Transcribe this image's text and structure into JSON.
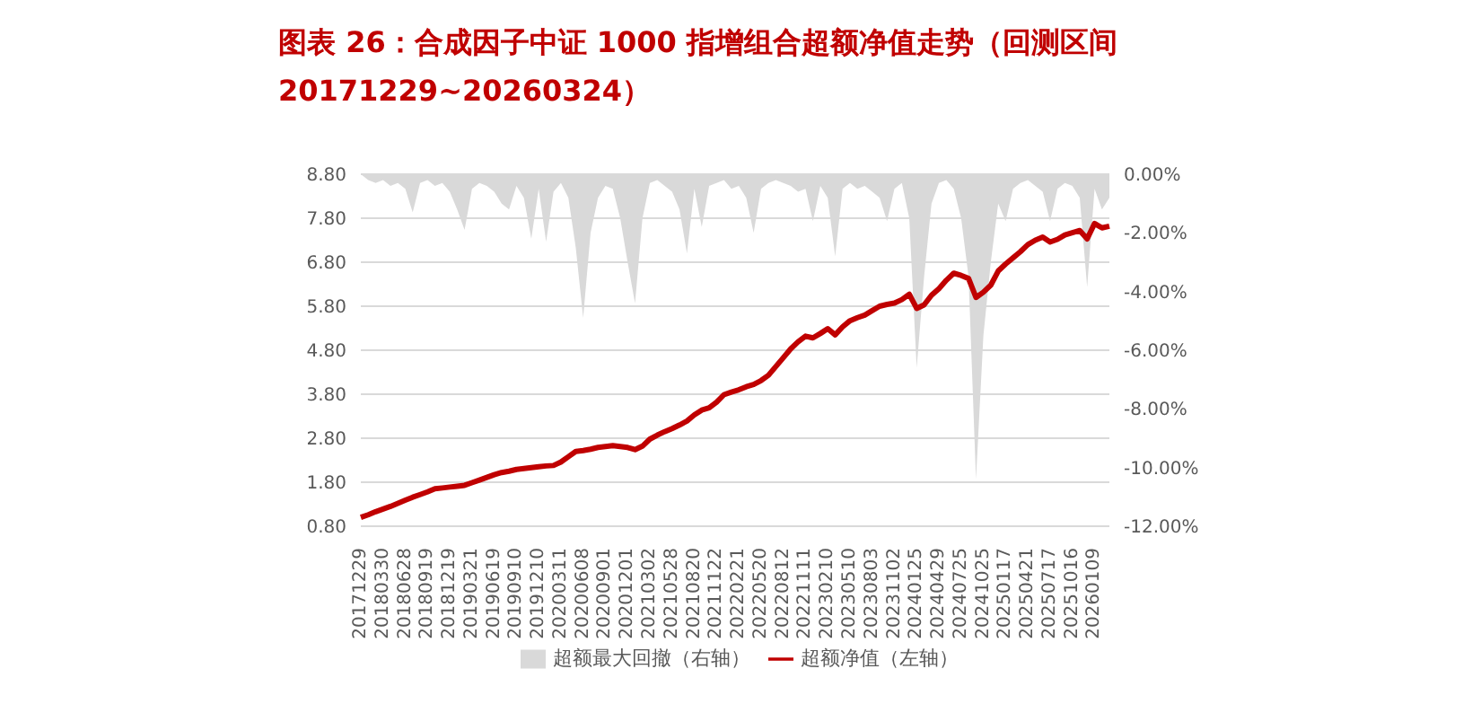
{
  "chart_data": {
    "type": "line",
    "title": "图表 26：合成因子中证 1000 指增组合超额净值走势（回测区间 20171229~20260324）",
    "categories": [
      "20171229",
      null,
      null,
      "20180330",
      null,
      null,
      "20180628",
      null,
      null,
      "20180919",
      null,
      null,
      "20181219",
      null,
      null,
      "20190321",
      null,
      null,
      "20190619",
      null,
      null,
      "20190910",
      null,
      null,
      "20191210",
      null,
      null,
      "20200311",
      null,
      null,
      "20200608",
      null,
      null,
      "20200901",
      null,
      null,
      "20201201",
      null,
      null,
      "20210302",
      null,
      null,
      "20210528",
      null,
      null,
      "20210820",
      null,
      null,
      "20211122",
      null,
      null,
      "20220221",
      null,
      null,
      "20220520",
      null,
      null,
      "20220812",
      null,
      null,
      "20221111",
      null,
      null,
      "20230210",
      null,
      null,
      "20230510",
      null,
      null,
      "20230803",
      null,
      null,
      "20231102",
      null,
      null,
      "20240125",
      null,
      null,
      "20240429",
      null,
      null,
      "20240725",
      null,
      null,
      "20241025",
      null,
      null,
      "20250117",
      null,
      null,
      "20250421",
      null,
      null,
      "20250717",
      null,
      null,
      "20251016",
      null,
      null,
      "20260109",
      null,
      null
    ],
    "series": [
      {
        "name": "超额最大回撤（右轴）",
        "type": "area",
        "axis": "y2",
        "color": "#d9d9d9",
        "values": [
          0,
          -0.2,
          -0.3,
          -0.2,
          -0.4,
          -0.3,
          -0.5,
          -1.3,
          -0.3,
          -0.2,
          -0.4,
          -0.3,
          -0.6,
          -1.2,
          -1.9,
          -0.5,
          -0.3,
          -0.4,
          -0.6,
          -1.0,
          -1.2,
          -0.4,
          -0.8,
          -2.2,
          -0.5,
          -2.3,
          -0.6,
          -0.3,
          -0.8,
          -2.5,
          -4.9,
          -2.0,
          -0.8,
          -0.4,
          -0.5,
          -1.5,
          -3.0,
          -4.4,
          -1.5,
          -0.3,
          -0.2,
          -0.4,
          -0.6,
          -1.2,
          -2.7,
          -0.5,
          -1.8,
          -0.4,
          -0.3,
          -0.2,
          -0.5,
          -0.4,
          -0.8,
          -2.0,
          -0.5,
          -0.3,
          -0.2,
          -0.3,
          -0.4,
          -0.6,
          -0.5,
          -1.6,
          -0.4,
          -0.8,
          -2.8,
          -0.5,
          -0.3,
          -0.5,
          -0.4,
          -0.6,
          -0.8,
          -1.6,
          -0.5,
          -0.3,
          -1.5,
          -6.6,
          -3.5,
          -1.0,
          -0.3,
          -0.2,
          -0.5,
          -1.5,
          -3.5,
          -10.4,
          -5.5,
          -3.0,
          -1.0,
          -1.6,
          -0.5,
          -0.3,
          -0.2,
          -0.4,
          -0.6,
          -1.6,
          -0.5,
          -0.3,
          -0.4,
          -0.8,
          -3.85,
          -0.5,
          -1.2,
          -0.8
        ]
      },
      {
        "name": "超额净值（左轴）",
        "color": "#c00000",
        "values": [
          1.0,
          1.06,
          1.13,
          1.19,
          1.25,
          1.32,
          1.39,
          1.46,
          1.52,
          1.58,
          1.65,
          1.67,
          1.69,
          1.71,
          1.73,
          1.79,
          1.85,
          1.91,
          1.97,
          2.02,
          2.05,
          2.09,
          2.11,
          2.13,
          2.15,
          2.17,
          2.18,
          2.26,
          2.38,
          2.5,
          2.52,
          2.55,
          2.59,
          2.61,
          2.63,
          2.61,
          2.59,
          2.54,
          2.62,
          2.78,
          2.87,
          2.95,
          3.02,
          3.1,
          3.19,
          3.33,
          3.44,
          3.49,
          3.62,
          3.79,
          3.85,
          3.9,
          3.97,
          4.02,
          4.11,
          4.23,
          4.43,
          4.63,
          4.83,
          4.99,
          5.12,
          5.08,
          5.18,
          5.29,
          5.15,
          5.33,
          5.47,
          5.54,
          5.6,
          5.7,
          5.8,
          5.84,
          5.87,
          5.95,
          6.07,
          5.75,
          5.83,
          6.05,
          6.2,
          6.39,
          6.55,
          6.5,
          6.43,
          6.0,
          6.12,
          6.28,
          6.6,
          6.76,
          6.9,
          7.04,
          7.2,
          7.3,
          7.37,
          7.26,
          7.32,
          7.42,
          7.47,
          7.52,
          7.33,
          7.68,
          7.58,
          7.62
        ]
      }
    ],
    "ylim": [
      0.8,
      8.8
    ],
    "yticks": [
      {
        "value": 0.8,
        "label": "0.80"
      },
      {
        "value": 1.8,
        "label": "1.80"
      },
      {
        "value": 2.8,
        "label": "2.80"
      },
      {
        "value": 3.8,
        "label": "3.80"
      },
      {
        "value": 4.8,
        "label": "4.80"
      },
      {
        "value": 5.8,
        "label": "5.80"
      },
      {
        "value": 6.8,
        "label": "6.80"
      },
      {
        "value": 7.8,
        "label": "7.80"
      },
      {
        "value": 8.8,
        "label": "8.80"
      }
    ],
    "y2lim": [
      -12,
      0
    ],
    "y2ticks": [
      {
        "value": -12,
        "label": "-12.00%"
      },
      {
        "value": -10,
        "label": "-10.00%"
      },
      {
        "value": -8,
        "label": "-8.00%"
      },
      {
        "value": -6,
        "label": "-6.00%"
      },
      {
        "value": -4,
        "label": "-4.00%"
      },
      {
        "value": -2,
        "label": "-2.00%"
      },
      {
        "value": 0,
        "label": "0.00%"
      }
    ],
    "grid": "y",
    "legend": "bottom"
  }
}
